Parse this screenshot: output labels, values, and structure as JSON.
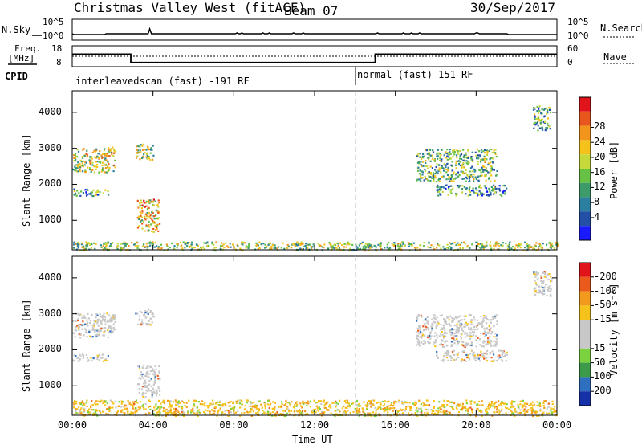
{
  "header": {
    "title": "Christmas Valley West (fitACF)",
    "beam": "Beam 07",
    "date": "30/Sep/2017"
  },
  "top_panels": {
    "nsky_label": "N.Sky",
    "nsearch_label": "N.Search",
    "n_ticks": [
      "10^5",
      "10^0"
    ],
    "freq_label_line1": "Freq.",
    "freq_label_line2": "[MHz]",
    "freq_ticks": [
      "18",
      "8"
    ],
    "nave_label": "Nave",
    "nave_ticks": [
      "60",
      "0"
    ],
    "cpid_label": "CPID",
    "cpid_segments": [
      {
        "name": "interleavedscan (fast) -191 RF",
        "start_hour": 0,
        "end_hour": 14
      },
      {
        "name": "normal (fast) 151 RF",
        "start_hour": 14,
        "end_hour": 24
      }
    ],
    "freq_steps": [
      {
        "start_hour": 0,
        "end_hour": 2.9,
        "freq_mhz": 14
      },
      {
        "start_hour": 2.9,
        "end_hour": 15,
        "freq_mhz": 10
      },
      {
        "start_hour": 15,
        "end_hour": 24,
        "freq_mhz": 14
      }
    ]
  },
  "chart_data": [
    {
      "type": "heatmap",
      "name": "power",
      "ylabel": "Slant Range [km]",
      "xlabel": "Time UT",
      "xlim_hours": [
        0,
        24
      ],
      "ylim_km": [
        180,
        4600
      ],
      "x_ticks": [
        "00:00",
        "04:00",
        "08:00",
        "12:00",
        "16:00",
        "20:00",
        "00:00"
      ],
      "y_ticks": [
        1000,
        2000,
        3000,
        4000
      ],
      "colorbar_label": "Power [dB]",
      "colorbar_ticks": [
        "4",
        "8",
        "12",
        "16",
        "20",
        "24",
        "28"
      ],
      "colorbar_colors": [
        "#1a1aff",
        "#234fa6",
        "#2c7fa0",
        "#3d9a6a",
        "#67c145",
        "#c6d93a",
        "#f5c21b",
        "#f2951d",
        "#e9561d",
        "#e0141a"
      ],
      "scatter_regions": [
        {
          "t0": 0,
          "t1": 2.1,
          "r0": 2350,
          "r1": 3050,
          "level": 0.55
        },
        {
          "t0": 0,
          "t1": 1.8,
          "r0": 1700,
          "r1": 1900,
          "level": 0.35
        },
        {
          "t0": 3.1,
          "t1": 4.0,
          "r0": 2700,
          "r1": 3150,
          "level": 0.5
        },
        {
          "t0": 3.2,
          "t1": 4.3,
          "r0": 700,
          "r1": 1600,
          "level": 0.65
        },
        {
          "t0": 17.0,
          "t1": 21.0,
          "r0": 2100,
          "r1": 3000,
          "level": 0.4
        },
        {
          "t0": 18.0,
          "t1": 21.5,
          "r0": 1700,
          "r1": 2000,
          "level": 0.3
        },
        {
          "t0": 22.8,
          "t1": 23.7,
          "r0": 3500,
          "r1": 4200,
          "level": 0.35
        },
        {
          "t0": 0,
          "t1": 24,
          "r0": 180,
          "r1": 420,
          "level": 0.5
        }
      ]
    },
    {
      "type": "heatmap",
      "name": "velocity",
      "ylabel": "Slant Range [km]",
      "xlabel": "Time UT",
      "xlim_hours": [
        0,
        24
      ],
      "ylim_km": [
        180,
        4600
      ],
      "x_ticks": [
        "00:00",
        "04:00",
        "08:00",
        "12:00",
        "16:00",
        "20:00",
        "00:00"
      ],
      "y_ticks": [
        1000,
        2000,
        3000,
        4000
      ],
      "colorbar_label": "Velocity [m s⁻¹]",
      "colorbar_ticks": [
        "200",
        "100",
        "50",
        "15",
        "-15",
        "-50",
        "-100",
        "-200"
      ],
      "colorbar_colors": [
        "#1630a8",
        "#2f6fbf",
        "#3d9a4a",
        "#7bd23f",
        "#c8c8c8",
        "#c8c8c8",
        "#f5c21b",
        "#f29a1d",
        "#eb5a1d",
        "#e0141a"
      ],
      "scatter_regions": [
        {
          "t0": 0,
          "t1": 2.1,
          "r0": 2350,
          "r1": 3050,
          "level": 0.5
        },
        {
          "t0": 0,
          "t1": 1.8,
          "r0": 1700,
          "r1": 1900,
          "level": 0.5
        },
        {
          "t0": 3.1,
          "t1": 4.0,
          "r0": 2700,
          "r1": 3150,
          "level": 0.5
        },
        {
          "t0": 3.2,
          "t1": 4.3,
          "r0": 700,
          "r1": 1600,
          "level": 0.5
        },
        {
          "t0": 17.0,
          "t1": 21.0,
          "r0": 2100,
          "r1": 3000,
          "level": 0.5
        },
        {
          "t0": 18.0,
          "t1": 21.5,
          "r0": 1700,
          "r1": 2000,
          "level": 0.5
        },
        {
          "t0": 22.8,
          "t1": 23.7,
          "r0": 3500,
          "r1": 4200,
          "level": 0.5
        },
        {
          "t0": 0,
          "t1": 24,
          "r0": 180,
          "r1": 620,
          "level": 0.7
        }
      ]
    }
  ]
}
